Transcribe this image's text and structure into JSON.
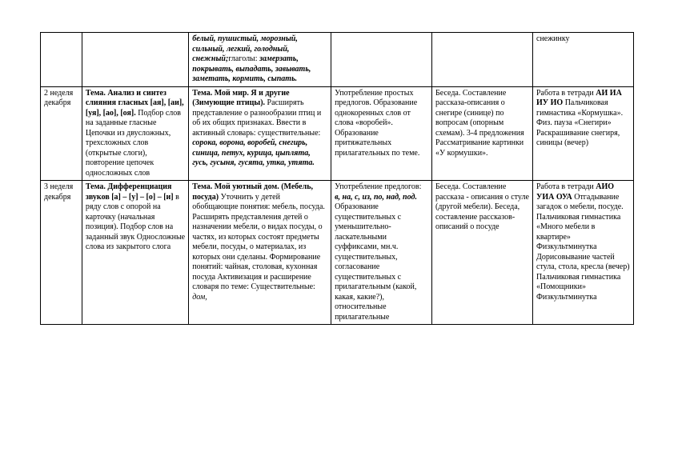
{
  "table": {
    "rows": [
      {
        "c1": "",
        "c2": "",
        "c3": {
          "parts": [
            {
              "cls": "bi",
              "t": "белый, пушистый, морозный, сильный, легкий, голодный, снежный;"
            },
            {
              "cls": "",
              "t": "глаголы: "
            },
            {
              "cls": "bi",
              "t": "замерзать, покрывать, выпадать, завывать, заметать, кормить, сыпать."
            }
          ]
        },
        "c4": "",
        "c5": "",
        "c6": "снежинку"
      },
      {
        "c1": "2 неделя декабря",
        "c2": {
          "parts": [
            {
              "cls": "b",
              "t": "Тема. Анализ и синтез слияния гласных [ая], [аи], [уя], [ао], [оя]."
            },
            {
              "cls": "",
              "t": " Подбор слов на заданные гласные"
            },
            {
              "cls": "",
              "t": " Цепочки из двусложных, трехсложных слов (открытые слоги), повторение цепочек односложных слов"
            }
          ]
        },
        "c3": {
          "parts": [
            {
              "cls": "b",
              "t": "Тема. Мой мир. Я и другие (Зимующие птицы)."
            },
            {
              "cls": "",
              "t": " Расширять представление о разнообразии птиц и об их общих признаках."
            },
            {
              "cls": "",
              "t": " Ввести в активный словарь: существительные: "
            },
            {
              "cls": "bi",
              "t": "сорока, ворона, воробей, снегирь, синица, петух, курица, цыплята, гусь, гусыня, гусята, утка, утята."
            }
          ]
        },
        "c4": "Употребление простых предлогов. Образование однокоренных слов от слова «воробей». Образование притяжательных прилагательных по теме.",
        "c5": "Беседа. Составление рассказа-описания о снегире (синице) по вопросам (опорным схемам). 3-4 предложения Рассматривание картинки «У кормушки».",
        "c6": {
          "parts": [
            {
              "cls": "",
              "t": "Работа в тетради "
            },
            {
              "cls": "b",
              "t": "АИ ИА ИУ ИО"
            },
            {
              "cls": "",
              "t": " Пальчиковая гимнастика «Кормушка». Физ. пауза «Снегири» Раскрашивание снегиря, синицы (вечер)"
            }
          ]
        }
      },
      {
        "c1": "3 неделя декабря",
        "c2": {
          "parts": [
            {
              "cls": "b",
              "t": "Тема. Дифференциация звуков [а] – [у] – [о] – [и]"
            },
            {
              "cls": "",
              "t": " в ряду слов с опорой на карточку (начальная позиция). Подбор слов на заданный звук Односложные слова из закрытого слога"
            }
          ]
        },
        "c3": {
          "parts": [
            {
              "cls": "b",
              "t": "Тема. Мой уютный дом. (Мебель, посуда)"
            },
            {
              "cls": "",
              "t": " Уточнить у детей обобщающие понятия: мебель, посуда. Расширять представления детей о назначении мебели, о видах посуды, о частях, из которых состоят предметы мебели, посуды, о материалах, из которых они сделаны. Формирование понятий: чайная, столовая, кухонная посуда Активизация и расширение словаря по теме: Существительные: "
            },
            {
              "cls": "i",
              "t": "дом,"
            }
          ]
        },
        "c4": {
          "parts": [
            {
              "cls": "",
              "t": "Употребление предлогов: "
            },
            {
              "cls": "bi",
              "t": "в, на, с, из, по, над, под."
            },
            {
              "cls": "",
              "t": " Образование существительных с уменьшительно-ласкательными суффиксами, мн.ч. существительных, согласование существительных с прилагательным (какой, какая, какие?), относительные прилагательные"
            }
          ]
        },
        "c5": "Беседа. Составление рассказа - описания о стуле (другой мебели). Беседа, составление рассказов-описаний о посуде",
        "c6": {
          "parts": [
            {
              "cls": "",
              "t": "Работа в тетради "
            },
            {
              "cls": "b",
              "t": "АИО УИА ОУА"
            },
            {
              "cls": "",
              "t": " Отгадывание загадок о мебели, посуде. Пальчиковая гимнастика «Много мебели в квартире» Физкультминутка Дорисовывание частей стула, стола, кресла (вечер) Пальчиковая гимнастика «Помощники» Физкультминутка"
            }
          ]
        }
      }
    ]
  }
}
